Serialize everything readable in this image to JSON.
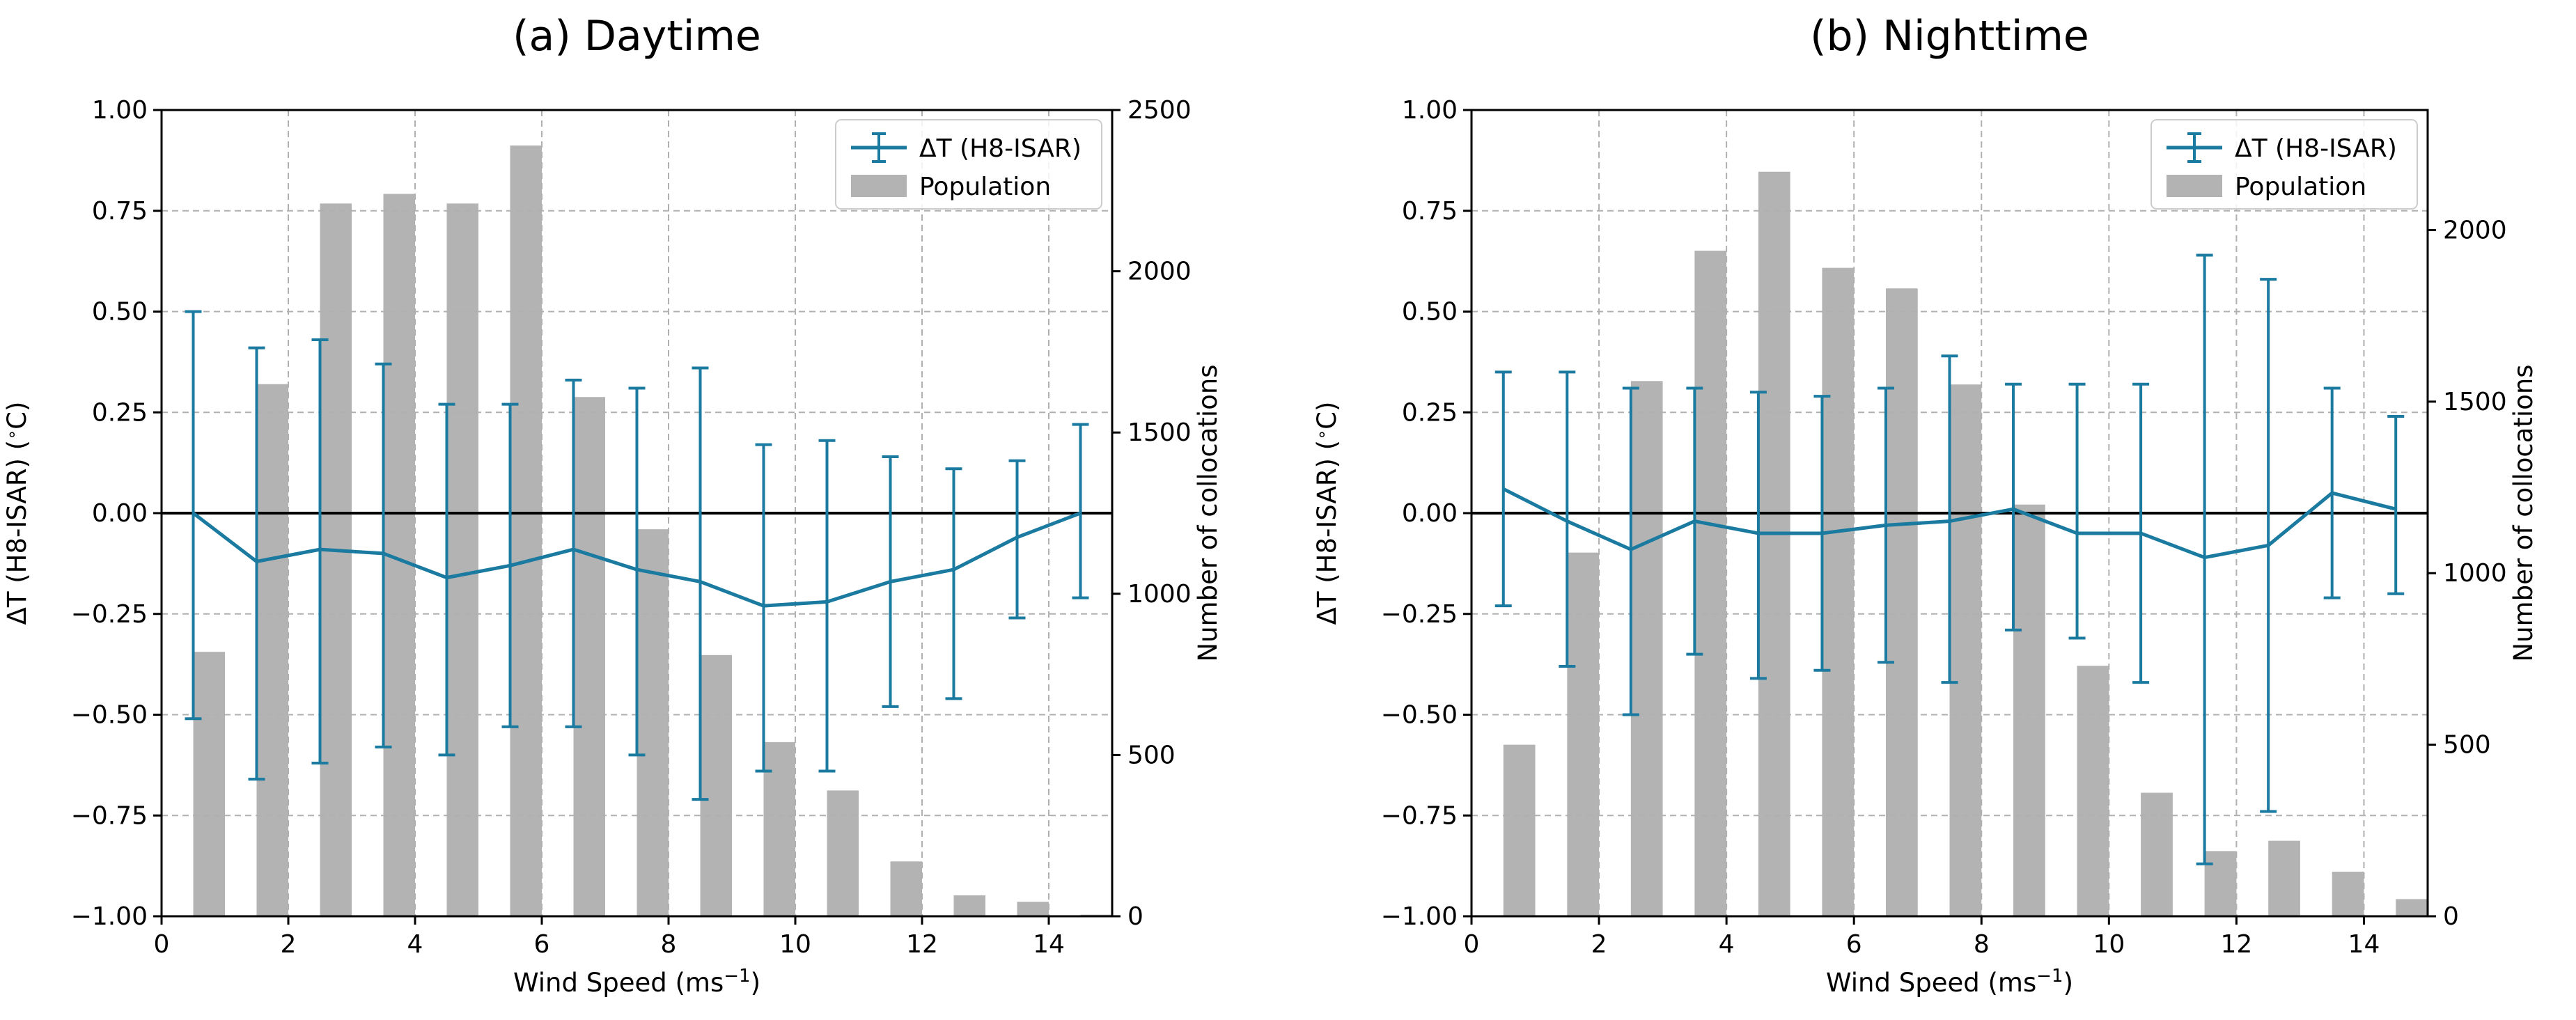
{
  "chart_data": [
    {
      "type": "bar+line",
      "title": "(a) Daytime",
      "xlabel": "Wind Speed (ms",
      "xlabel_sup": "−1",
      "ylabel": "ΔT (H8-ISAR) (",
      "ylabel_deg": "∘",
      "ylabel_end": "C)",
      "ylabel_right": "Number of collocations",
      "xlim": [
        0,
        15
      ],
      "ylim": [
        -1.0,
        1.0
      ],
      "ylim_right": [
        0,
        2500
      ],
      "xticks": [
        0,
        2,
        4,
        6,
        8,
        10,
        12,
        14
      ],
      "yticks": [
        "−1.00",
        "−0.75",
        "−0.50",
        "−0.25",
        "0.00",
        "0.25",
        "0.50",
        "0.75",
        "1.00"
      ],
      "ytick_values": [
        -1.0,
        -0.75,
        -0.5,
        -0.25,
        0.0,
        0.25,
        0.5,
        0.75,
        1.0
      ],
      "yticks_right": [
        0,
        500,
        1000,
        1500,
        2000,
        2500
      ],
      "grid": true,
      "legend_position": "top-right",
      "legend": [
        "ΔT (H8-ISAR)",
        "Population"
      ],
      "x": [
        0.5,
        1.5,
        2.5,
        3.5,
        4.5,
        5.5,
        6.5,
        7.5,
        8.5,
        9.5,
        10.5,
        11.5,
        12.5,
        13.5,
        14.5
      ],
      "population": [
        820,
        1650,
        2210,
        2240,
        2210,
        2390,
        1610,
        1200,
        810,
        540,
        390,
        170,
        65,
        45,
        5
      ],
      "delta_t": [
        0.0,
        -0.12,
        -0.09,
        -0.1,
        -0.16,
        -0.13,
        -0.09,
        -0.14,
        -0.17,
        -0.23,
        -0.22,
        -0.17,
        -0.14,
        -0.06,
        0.0
      ],
      "err_upper": [
        0.5,
        0.41,
        0.43,
        0.37,
        0.27,
        0.27,
        0.33,
        0.31,
        0.36,
        0.17,
        0.18,
        0.14,
        0.11,
        0.13,
        0.22
      ],
      "err_lower": [
        -0.51,
        -0.66,
        -0.62,
        -0.58,
        -0.6,
        -0.53,
        -0.53,
        -0.6,
        -0.71,
        -0.64,
        -0.64,
        -0.48,
        -0.46,
        -0.26,
        -0.21
      ]
    },
    {
      "type": "bar+line",
      "title": "(b) Nighttime",
      "xlabel": "Wind Speed (ms",
      "xlabel_sup": "−1",
      "ylabel": "ΔT (H8-ISAR) (",
      "ylabel_deg": "∘",
      "ylabel_end": "C)",
      "ylabel_right": "Number of collocations",
      "xlim": [
        0,
        15
      ],
      "ylim": [
        -1.0,
        1.0
      ],
      "ylim_right": [
        0,
        2350
      ],
      "xticks": [
        0,
        2,
        4,
        6,
        8,
        10,
        12,
        14
      ],
      "yticks": [
        "−1.00",
        "−0.75",
        "−0.50",
        "−0.25",
        "0.00",
        "0.25",
        "0.50",
        "0.75",
        "1.00"
      ],
      "ytick_values": [
        -1.0,
        -0.75,
        -0.5,
        -0.25,
        0.0,
        0.25,
        0.5,
        0.75,
        1.0
      ],
      "yticks_right": [
        0,
        500,
        1000,
        1500,
        2000
      ],
      "grid": true,
      "legend_position": "top-right",
      "legend": [
        "ΔT (H8-ISAR)",
        "Population"
      ],
      "x": [
        0.5,
        1.5,
        2.5,
        3.5,
        4.5,
        5.5,
        6.5,
        7.5,
        8.5,
        9.5,
        10.5,
        11.5,
        12.5,
        13.5,
        14.5
      ],
      "population": [
        500,
        1060,
        1560,
        1940,
        2170,
        1890,
        1830,
        1550,
        1200,
        730,
        360,
        190,
        220,
        130,
        50
      ],
      "delta_t": [
        0.06,
        -0.02,
        -0.09,
        -0.02,
        -0.05,
        -0.05,
        -0.03,
        -0.02,
        0.01,
        -0.05,
        -0.05,
        -0.11,
        -0.08,
        0.05,
        0.01
      ],
      "err_upper": [
        0.35,
        0.35,
        0.31,
        0.31,
        0.3,
        0.29,
        0.31,
        0.39,
        0.32,
        0.32,
        0.32,
        0.64,
        0.58,
        0.31,
        0.24
      ],
      "err_lower": [
        -0.23,
        -0.38,
        -0.5,
        -0.35,
        -0.41,
        -0.39,
        -0.37,
        -0.42,
        -0.29,
        -0.31,
        -0.42,
        -0.87,
        -0.74,
        -0.21,
        -0.2
      ]
    }
  ],
  "colors": {
    "line": "#1a7aa0",
    "bar": "#b3b3b3",
    "grid": "#b0b0b0",
    "zero": "#000000"
  }
}
